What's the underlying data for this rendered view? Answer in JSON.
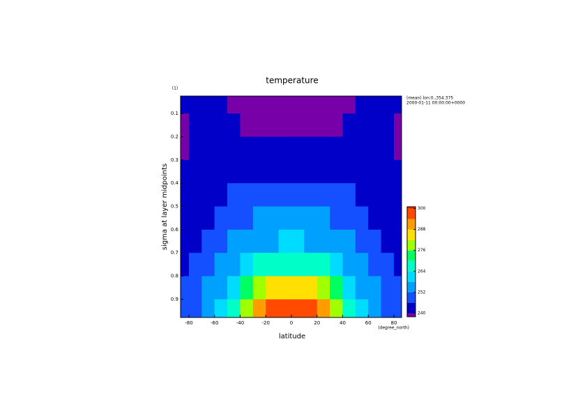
{
  "chart_data": {
    "type": "contour",
    "title": "temperature",
    "x_label": "latitude",
    "x_unit": "(degree_north)",
    "y_label": "sigma at layer midpoints",
    "y_unit": "(1)",
    "info": [
      "(mean) lon:0.,354.375",
      "2000-01-11 00:00:00+0000"
    ],
    "x": [
      -85,
      -75,
      -65,
      -55,
      -45,
      -35,
      -25,
      -15,
      -5,
      5,
      15,
      25,
      35,
      45,
      55,
      65,
      75,
      85
    ],
    "y": [
      0.05,
      0.15,
      0.25,
      0.35,
      0.45,
      0.55,
      0.65,
      0.75,
      0.85,
      0.95
    ],
    "z": [
      [
        243,
        243,
        243,
        242,
        238,
        236,
        235,
        235,
        235,
        235,
        235,
        235,
        236,
        238,
        242,
        243,
        243,
        243
      ],
      [
        238,
        242,
        242,
        242,
        240,
        237,
        236,
        236,
        236,
        236,
        236,
        236,
        237,
        240,
        242,
        242,
        242,
        238
      ],
      [
        238,
        240,
        241,
        242,
        242,
        242,
        242,
        242,
        242,
        242,
        242,
        242,
        242,
        242,
        242,
        241,
        240,
        238
      ],
      [
        241,
        241,
        241,
        242,
        242,
        243,
        244,
        245,
        245,
        245,
        245,
        244,
        243,
        242,
        242,
        241,
        241,
        241
      ],
      [
        242,
        242,
        243,
        244,
        246,
        247,
        248,
        249,
        249,
        249,
        249,
        248,
        247,
        246,
        244,
        243,
        242,
        242
      ],
      [
        243,
        244,
        245,
        247,
        249,
        251,
        253,
        253,
        252,
        252,
        253,
        253,
        251,
        249,
        247,
        245,
        244,
        243
      ],
      [
        243,
        244,
        246,
        249,
        252,
        254,
        256,
        257,
        258,
        258,
        257,
        256,
        254,
        252,
        249,
        246,
        244,
        243
      ],
      [
        244,
        246,
        249,
        252,
        255,
        259,
        264,
        266,
        268,
        268,
        266,
        264,
        259,
        255,
        252,
        249,
        246,
        244
      ],
      [
        246,
        248,
        252,
        256,
        262,
        270,
        278,
        282,
        284,
        284,
        282,
        278,
        270,
        262,
        256,
        252,
        248,
        246
      ],
      [
        247,
        250,
        255,
        260,
        268,
        280,
        288,
        294,
        296,
        296,
        294,
        288,
        280,
        268,
        260,
        255,
        250,
        247
      ]
    ],
    "xlim": [
      -86.5,
      86
    ],
    "ylim": [
      0.025,
      0.978
    ],
    "xticks": [
      -80,
      -60,
      -40,
      -20,
      0,
      20,
      40,
      60,
      80
    ],
    "yticks": [
      0.1,
      0.2,
      0.3,
      0.4,
      0.5,
      0.6,
      0.7,
      0.8,
      0.9
    ],
    "levels": [
      240,
      246,
      252,
      258,
      264,
      270,
      276,
      282,
      288,
      294,
      300
    ],
    "colors": [
      "#7800a8",
      "#0000c8",
      "#1450ff",
      "#00a0ff",
      "#00dcff",
      "#00ffc8",
      "#00ff60",
      "#a0ff00",
      "#ffe000",
      "#ff9c00",
      "#ff4a00",
      "#ff1e00"
    ],
    "colorbar_lim": [
      238,
      301
    ],
    "colorbar_ticks": [
      240,
      252,
      264,
      276,
      288,
      300
    ]
  }
}
